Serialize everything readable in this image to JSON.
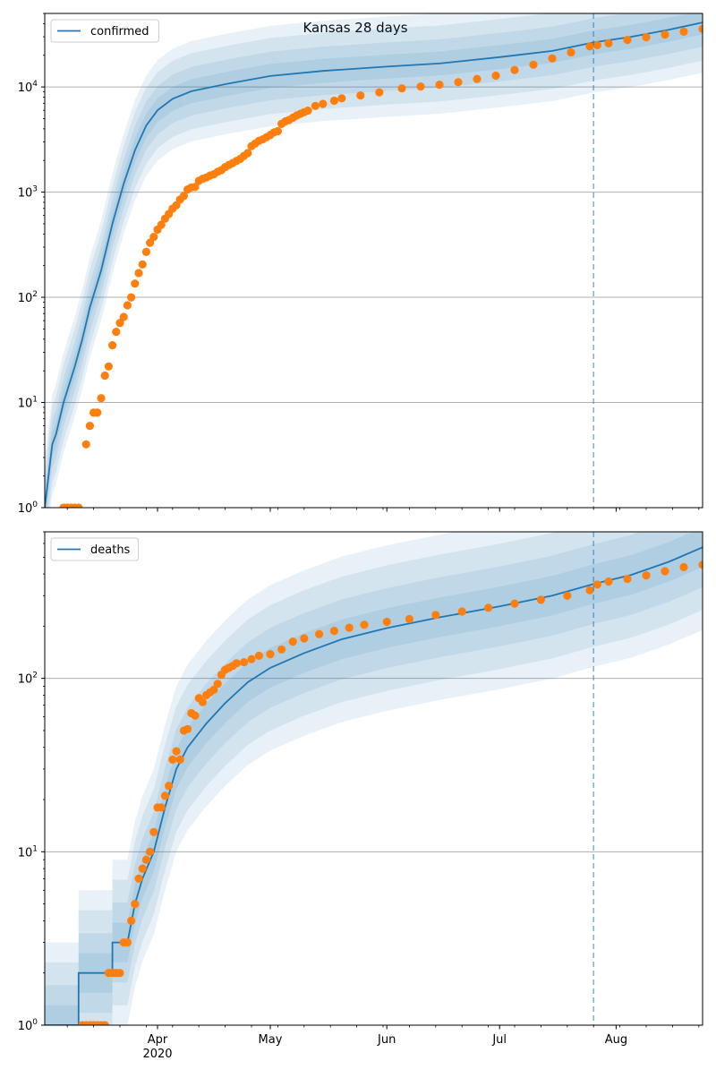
{
  "figure": {
    "title": "Kansas 28 days"
  },
  "chart_data": [
    {
      "type": "line",
      "title": "Kansas 28 days",
      "yscale": "log",
      "ylim": [
        1,
        50000
      ],
      "xlim": [
        "2020-03-02",
        "2020-08-24"
      ],
      "grid": "y-major",
      "legend": {
        "placement": "top-left",
        "entries": [
          "confirmed"
        ]
      },
      "x_tick_labels": [
        "Apr\n2020",
        "May",
        "Jun",
        "Jul",
        "Aug"
      ],
      "y_tick_labels": [
        "10^0",
        "10^1",
        "10^2",
        "10^3",
        "10^4"
      ],
      "forecast_start": "2020-07-26",
      "series": [
        {
          "name": "confirmed",
          "kind": "model-fit",
          "color": "#1f77b4",
          "band_color": "#1f77b4",
          "points": [
            [
              "2020-03-02",
              1
            ],
            [
              "2020-03-04",
              4
            ],
            [
              "2020-03-05",
              5
            ],
            [
              "2020-03-07",
              10
            ],
            [
              "2020-03-10",
              22
            ],
            [
              "2020-03-12",
              40
            ],
            [
              "2020-03-14",
              80
            ],
            [
              "2020-03-17",
              180
            ],
            [
              "2020-03-20",
              500
            ],
            [
              "2020-03-23",
              1200
            ],
            [
              "2020-03-26",
              2500
            ],
            [
              "2020-03-29",
              4300
            ],
            [
              "2020-04-01",
              6000
            ],
            [
              "2020-04-05",
              7700
            ],
            [
              "2020-04-10",
              9100
            ],
            [
              "2020-04-20",
              10800
            ],
            [
              "2020-05-01",
              12700
            ],
            [
              "2020-05-15",
              14200
            ],
            [
              "2020-06-01",
              15600
            ],
            [
              "2020-06-15",
              16700
            ],
            [
              "2020-07-01",
              19200
            ],
            [
              "2020-07-15",
              22000
            ],
            [
              "2020-07-26",
              26500
            ],
            [
              "2020-08-05",
              30000
            ],
            [
              "2020-08-15",
              35000
            ],
            [
              "2020-08-24",
              41000
            ]
          ]
        },
        {
          "name": "",
          "kind": "observed",
          "color": "#ff7f0e",
          "points": [
            [
              "2020-03-07",
              1
            ],
            [
              "2020-03-08",
              1
            ],
            [
              "2020-03-09",
              1
            ],
            [
              "2020-03-10",
              1
            ],
            [
              "2020-03-11",
              1
            ],
            [
              "2020-03-13",
              4
            ],
            [
              "2020-03-14",
              6
            ],
            [
              "2020-03-15",
              8
            ],
            [
              "2020-03-16",
              8
            ],
            [
              "2020-03-17",
              11
            ],
            [
              "2020-03-18",
              18
            ],
            [
              "2020-03-19",
              22
            ],
            [
              "2020-03-20",
              35
            ],
            [
              "2020-03-21",
              47
            ],
            [
              "2020-03-22",
              57
            ],
            [
              "2020-03-23",
              65
            ],
            [
              "2020-03-24",
              84
            ],
            [
              "2020-03-25",
              100
            ],
            [
              "2020-03-26",
              135
            ],
            [
              "2020-03-27",
              170
            ],
            [
              "2020-03-28",
              205
            ],
            [
              "2020-03-29",
              270
            ],
            [
              "2020-03-30",
              330
            ],
            [
              "2020-03-31",
              375
            ],
            [
              "2020-04-01",
              440
            ],
            [
              "2020-04-02",
              490
            ],
            [
              "2020-04-03",
              560
            ],
            [
              "2020-04-04",
              620
            ],
            [
              "2020-04-05",
              695
            ],
            [
              "2020-04-06",
              750
            ],
            [
              "2020-04-07",
              850
            ],
            [
              "2020-04-08",
              920
            ],
            [
              "2020-04-09",
              1060
            ],
            [
              "2020-04-10",
              1110
            ],
            [
              "2020-04-11",
              1120
            ],
            [
              "2020-04-12",
              1280
            ],
            [
              "2020-04-13",
              1340
            ],
            [
              "2020-04-14",
              1380
            ],
            [
              "2020-04-15",
              1440
            ],
            [
              "2020-04-16",
              1480
            ],
            [
              "2020-04-17",
              1560
            ],
            [
              "2020-04-18",
              1620
            ],
            [
              "2020-04-19",
              1730
            ],
            [
              "2020-04-20",
              1810
            ],
            [
              "2020-04-21",
              1890
            ],
            [
              "2020-04-22",
              1980
            ],
            [
              "2020-04-23",
              2070
            ],
            [
              "2020-04-24",
              2210
            ],
            [
              "2020-04-25",
              2350
            ],
            [
              "2020-04-26",
              2740
            ],
            [
              "2020-04-27",
              2900
            ],
            [
              "2020-04-28",
              3080
            ],
            [
              "2020-04-29",
              3180
            ],
            [
              "2020-04-30",
              3330
            ],
            [
              "2020-05-01",
              3500
            ],
            [
              "2020-05-02",
              3700
            ],
            [
              "2020-05-03",
              3800
            ],
            [
              "2020-05-04",
              4450
            ],
            [
              "2020-05-05",
              4700
            ],
            [
              "2020-05-06",
              4850
            ],
            [
              "2020-05-07",
              5100
            ],
            [
              "2020-05-08",
              5350
            ],
            [
              "2020-05-09",
              5550
            ],
            [
              "2020-05-10",
              5750
            ],
            [
              "2020-05-11",
              5950
            ],
            [
              "2020-05-13",
              6600
            ],
            [
              "2020-05-15",
              6900
            ],
            [
              "2020-05-18",
              7400
            ],
            [
              "2020-05-20",
              7800
            ],
            [
              "2020-05-25",
              8300
            ],
            [
              "2020-05-30",
              8900
            ],
            [
              "2020-06-05",
              9700
            ],
            [
              "2020-06-10",
              10100
            ],
            [
              "2020-06-15",
              10500
            ],
            [
              "2020-06-20",
              11100
            ],
            [
              "2020-06-25",
              11900
            ],
            [
              "2020-06-30",
              12800
            ],
            [
              "2020-07-05",
              14500
            ],
            [
              "2020-07-10",
              16300
            ],
            [
              "2020-07-15",
              18700
            ],
            [
              "2020-07-20",
              21300
            ],
            [
              "2020-07-25",
              24300
            ],
            [
              "2020-07-27",
              25000
            ],
            [
              "2020-07-30",
              26000
            ],
            [
              "2020-08-04",
              28000
            ],
            [
              "2020-08-09",
              29700
            ],
            [
              "2020-08-14",
              31500
            ],
            [
              "2020-08-19",
              33500
            ],
            [
              "2020-08-24",
              35600
            ]
          ]
        }
      ]
    },
    {
      "type": "line",
      "title": "",
      "yscale": "log",
      "ylim": [
        1,
        700
      ],
      "xlim": [
        "2020-03-02",
        "2020-08-24"
      ],
      "grid": "y-major",
      "legend": {
        "placement": "top-left",
        "entries": [
          "deaths"
        ]
      },
      "x_tick_labels": [
        "Apr\n2020",
        "May",
        "Jun",
        "Jul",
        "Aug"
      ],
      "y_tick_labels": [
        "10^0",
        "10^1",
        "10^2"
      ],
      "forecast_start": "2020-07-26",
      "series": [
        {
          "name": "deaths",
          "kind": "model-fit",
          "color": "#1f77b4",
          "band_color": "#1f77b4",
          "points": [
            [
              "2020-03-02",
              1
            ],
            [
              "2020-03-11",
              1
            ],
            [
              "2020-03-11",
              2
            ],
            [
              "2020-03-20",
              2
            ],
            [
              "2020-03-20",
              3
            ],
            [
              "2020-03-24",
              3
            ],
            [
              "2020-03-26",
              5
            ],
            [
              "2020-03-28",
              7
            ],
            [
              "2020-03-31",
              10
            ],
            [
              "2020-04-03",
              18
            ],
            [
              "2020-04-06",
              30
            ],
            [
              "2020-04-09",
              40
            ],
            [
              "2020-04-14",
              55
            ],
            [
              "2020-04-19",
              72
            ],
            [
              "2020-04-25",
              95
            ],
            [
              "2020-05-01",
              115
            ],
            [
              "2020-05-10",
              140
            ],
            [
              "2020-05-20",
              168
            ],
            [
              "2020-06-01",
              195
            ],
            [
              "2020-06-15",
              225
            ],
            [
              "2020-07-01",
              260
            ],
            [
              "2020-07-15",
              300
            ],
            [
              "2020-07-26",
              350
            ],
            [
              "2020-08-05",
              395
            ],
            [
              "2020-08-15",
              470
            ],
            [
              "2020-08-24",
              570
            ]
          ]
        },
        {
          "name": "",
          "kind": "observed",
          "color": "#ff7f0e",
          "points": [
            [
              "2020-03-12",
              1
            ],
            [
              "2020-03-13",
              1
            ],
            [
              "2020-03-14",
              1
            ],
            [
              "2020-03-15",
              1
            ],
            [
              "2020-03-16",
              1
            ],
            [
              "2020-03-17",
              1
            ],
            [
              "2020-03-18",
              1
            ],
            [
              "2020-03-19",
              2
            ],
            [
              "2020-03-20",
              2
            ],
            [
              "2020-03-21",
              2
            ],
            [
              "2020-03-22",
              2
            ],
            [
              "2020-03-23",
              3
            ],
            [
              "2020-03-24",
              3
            ],
            [
              "2020-03-25",
              4
            ],
            [
              "2020-03-26",
              5
            ],
            [
              "2020-03-27",
              7
            ],
            [
              "2020-03-28",
              8
            ],
            [
              "2020-03-29",
              9
            ],
            [
              "2020-03-30",
              10
            ],
            [
              "2020-03-31",
              13
            ],
            [
              "2020-04-01",
              18
            ],
            [
              "2020-04-02",
              18
            ],
            [
              "2020-04-03",
              21
            ],
            [
              "2020-04-04",
              24
            ],
            [
              "2020-04-05",
              34
            ],
            [
              "2020-04-06",
              38
            ],
            [
              "2020-04-07",
              34
            ],
            [
              "2020-04-08",
              50
            ],
            [
              "2020-04-09",
              51
            ],
            [
              "2020-04-10",
              63
            ],
            [
              "2020-04-11",
              61
            ],
            [
              "2020-04-12",
              77
            ],
            [
              "2020-04-13",
              73
            ],
            [
              "2020-04-14",
              80
            ],
            [
              "2020-04-15",
              83
            ],
            [
              "2020-04-16",
              86
            ],
            [
              "2020-04-17",
              93
            ],
            [
              "2020-04-18",
              105
            ],
            [
              "2020-04-19",
              112
            ],
            [
              "2020-04-20",
              115
            ],
            [
              "2020-04-21",
              118
            ],
            [
              "2020-04-22",
              122
            ],
            [
              "2020-04-24",
              124
            ],
            [
              "2020-04-26",
              129
            ],
            [
              "2020-04-28",
              135
            ],
            [
              "2020-05-01",
              138
            ],
            [
              "2020-05-04",
              147
            ],
            [
              "2020-05-07",
              163
            ],
            [
              "2020-05-10",
              170
            ],
            [
              "2020-05-14",
              180
            ],
            [
              "2020-05-18",
              188
            ],
            [
              "2020-05-22",
              196
            ],
            [
              "2020-05-26",
              204
            ],
            [
              "2020-06-01",
              212
            ],
            [
              "2020-06-07",
              220
            ],
            [
              "2020-06-14",
              232
            ],
            [
              "2020-06-21",
              243
            ],
            [
              "2020-06-28",
              255
            ],
            [
              "2020-07-05",
              270
            ],
            [
              "2020-07-12",
              284
            ],
            [
              "2020-07-19",
              300
            ],
            [
              "2020-07-25",
              322
            ],
            [
              "2020-07-27",
              348
            ],
            [
              "2020-07-30",
              362
            ],
            [
              "2020-08-04",
              375
            ],
            [
              "2020-08-09",
              393
            ],
            [
              "2020-08-14",
              415
            ],
            [
              "2020-08-19",
              438
            ],
            [
              "2020-08-24",
              452
            ]
          ]
        }
      ]
    }
  ]
}
